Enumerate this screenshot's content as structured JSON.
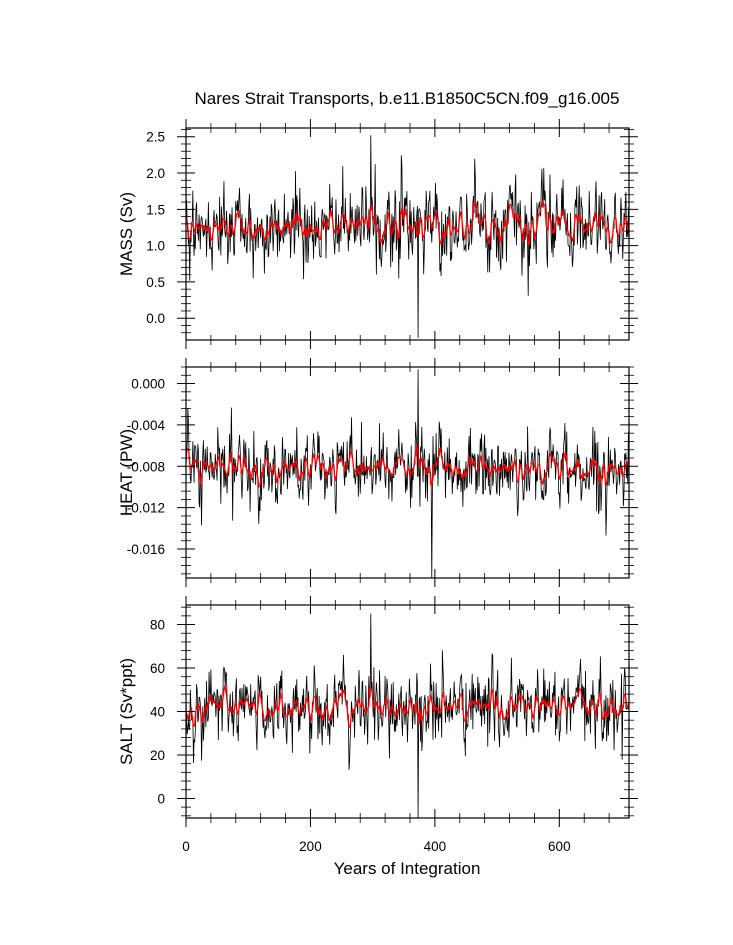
{
  "chart_data": {
    "type": "line",
    "title": "Nares Strait Transports, b.e11.B1850C5CN.f09_g16.005",
    "xlabel": "Years of Integration",
    "x_range": [
      0,
      712
    ],
    "x_ticks": [
      "0",
      "200",
      "400",
      "600"
    ],
    "x_tick_values": [
      0,
      200,
      400,
      600
    ],
    "grid": false,
    "colors": {
      "annual": "#000000",
      "smoothed": "#ff0000",
      "axes": "#000000"
    },
    "panels": [
      {
        "ylabel": "MASS (Sv)",
        "ylim": [
          -0.3,
          2.62
        ],
        "y_ticks": [
          "0.0",
          "0.5",
          "1.0",
          "1.5",
          "2.0",
          "2.5"
        ],
        "y_tick_values": [
          0.0,
          0.5,
          1.0,
          1.5,
          2.0,
          2.5
        ],
        "series": [
          {
            "style": "annual",
            "mean": 1.28,
            "spread": 0.28,
            "min": -0.27,
            "max": 2.52,
            "min_year": 373,
            "max_year": 297
          },
          {
            "style": "smoothed",
            "mean": 1.28,
            "spread": 0.1
          }
        ]
      },
      {
        "ylabel": "HEAT (PW)",
        "ylim": [
          -0.0188,
          0.0016
        ],
        "y_ticks": [
          "0.000",
          "-0.004",
          "-0.008",
          "-0.012",
          "-0.016"
        ],
        "y_tick_values": [
          0.0,
          -0.004,
          -0.008,
          -0.012,
          -0.016
        ],
        "series": [
          {
            "style": "annual",
            "mean": -0.0083,
            "spread": 0.0018,
            "min": -0.0188,
            "max": 0.0014,
            "min_year": 395,
            "max_year": 373
          },
          {
            "style": "smoothed",
            "mean": -0.0082,
            "spread": 0.0006
          }
        ]
      },
      {
        "ylabel": "SALT (Sv*ppt)",
        "ylim": [
          -9,
          89
        ],
        "y_ticks": [
          "0",
          "20",
          "40",
          "60",
          "80"
        ],
        "y_tick_values": [
          0,
          20,
          40,
          60,
          80
        ],
        "series": [
          {
            "style": "annual",
            "mean": 42,
            "spread": 9,
            "min": -9,
            "max": 85,
            "min_year": 373,
            "max_year": 297
          },
          {
            "style": "smoothed",
            "mean": 42,
            "spread": 3
          }
        ]
      }
    ]
  }
}
